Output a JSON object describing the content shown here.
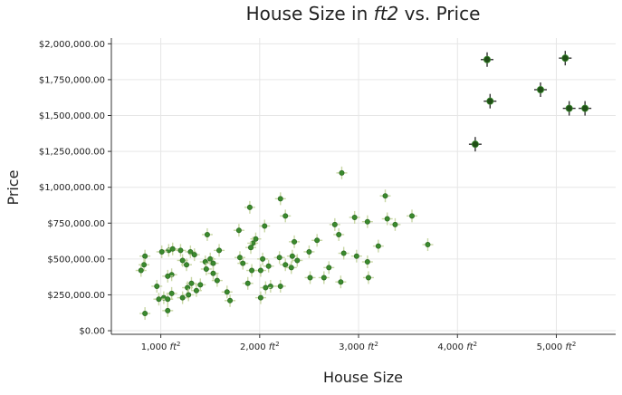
{
  "chart_data": {
    "type": "scatter",
    "title": {
      "prefix": "House Size in ",
      "unit": "ft2",
      "suffix": " vs. Price"
    },
    "xlabel": "House Size",
    "ylabel": "Price",
    "xlim": [
      500,
      5600
    ],
    "ylim": [
      -25000,
      2040000
    ],
    "grid": true,
    "x_ticks": [
      {
        "value": 1000,
        "number": "1,000",
        "unit": "ft",
        "exp": "2"
      },
      {
        "value": 2000,
        "number": "2,000",
        "unit": "ft",
        "exp": "2"
      },
      {
        "value": 3000,
        "number": "3,000",
        "unit": "ft",
        "exp": "2"
      },
      {
        "value": 4000,
        "number": "4,000",
        "unit": "ft",
        "exp": "2"
      },
      {
        "value": 5000,
        "number": "5,000",
        "unit": "ft",
        "exp": "2"
      }
    ],
    "y_ticks": [
      {
        "value": 0,
        "label": "$0.00"
      },
      {
        "value": 250000,
        "label": "$250,000.00"
      },
      {
        "value": 500000,
        "label": "$500,000.00"
      },
      {
        "value": 750000,
        "label": "$750,000.00"
      },
      {
        "value": 1000000,
        "label": "$1,000,000.00"
      },
      {
        "value": 1250000,
        "label": "$1,250,000.00"
      },
      {
        "value": 1500000,
        "label": "$1,500,000.00"
      },
      {
        "value": 1750000,
        "label": "$1,750,000.00"
      },
      {
        "value": 2000000,
        "label": "$2,000,000.00"
      }
    ],
    "colors": {
      "marker": "#3a8a2e",
      "marker_dark": "#1f4f16",
      "error_light": "#c9d7a6",
      "error_dark": "#333333"
    },
    "points": [
      [
        4300,
        1890000
      ],
      [
        5090,
        1900000
      ],
      [
        4840,
        1680000
      ],
      [
        4330,
        1600000
      ],
      [
        5130,
        1550000
      ],
      [
        5290,
        1550000
      ],
      [
        4180,
        1300000
      ],
      [
        2830,
        1100000
      ],
      [
        3270,
        940000
      ],
      [
        2210,
        920000
      ],
      [
        1900,
        860000
      ],
      [
        2260,
        800000
      ],
      [
        3540,
        800000
      ],
      [
        2960,
        790000
      ],
      [
        3090,
        760000
      ],
      [
        3290,
        780000
      ],
      [
        2760,
        740000
      ],
      [
        3370,
        740000
      ],
      [
        2050,
        730000
      ],
      [
        1790,
        700000
      ],
      [
        1470,
        670000
      ],
      [
        2800,
        670000
      ],
      [
        1960,
        640000
      ],
      [
        1930,
        610000
      ],
      [
        2350,
        620000
      ],
      [
        2580,
        630000
      ],
      [
        3200,
        590000
      ],
      [
        3700,
        600000
      ],
      [
        1910,
        580000
      ],
      [
        1200,
        560000
      ],
      [
        1300,
        550000
      ],
      [
        1080,
        560000
      ],
      [
        1120,
        570000
      ],
      [
        1590,
        560000
      ],
      [
        2500,
        550000
      ],
      [
        2850,
        540000
      ],
      [
        840,
        520000
      ],
      [
        1010,
        550000
      ],
      [
        1340,
        530000
      ],
      [
        2200,
        510000
      ],
      [
        2330,
        520000
      ],
      [
        1800,
        510000
      ],
      [
        1500,
        500000
      ],
      [
        2030,
        500000
      ],
      [
        1220,
        490000
      ],
      [
        1450,
        480000
      ],
      [
        2380,
        490000
      ],
      [
        2980,
        520000
      ],
      [
        3090,
        480000
      ],
      [
        830,
        460000
      ],
      [
        1260,
        460000
      ],
      [
        1530,
        470000
      ],
      [
        1830,
        470000
      ],
      [
        2090,
        450000
      ],
      [
        2260,
        460000
      ],
      [
        2320,
        440000
      ],
      [
        800,
        420000
      ],
      [
        1460,
        430000
      ],
      [
        1920,
        420000
      ],
      [
        2010,
        420000
      ],
      [
        2700,
        440000
      ],
      [
        1110,
        390000
      ],
      [
        1530,
        400000
      ],
      [
        1070,
        380000
      ],
      [
        2510,
        370000
      ],
      [
        2650,
        370000
      ],
      [
        1570,
        350000
      ],
      [
        3100,
        370000
      ],
      [
        2820,
        340000
      ],
      [
        1880,
        330000
      ],
      [
        1310,
        330000
      ],
      [
        1400,
        320000
      ],
      [
        960,
        310000
      ],
      [
        2110,
        310000
      ],
      [
        2210,
        310000
      ],
      [
        1270,
        300000
      ],
      [
        2060,
        300000
      ],
      [
        1360,
        280000
      ],
      [
        1670,
        270000
      ],
      [
        1110,
        260000
      ],
      [
        1280,
        250000
      ],
      [
        1030,
        230000
      ],
      [
        1220,
        230000
      ],
      [
        2010,
        230000
      ],
      [
        980,
        220000
      ],
      [
        1070,
        220000
      ],
      [
        1700,
        210000
      ],
      [
        1070,
        140000
      ],
      [
        840,
        120000
      ]
    ]
  }
}
